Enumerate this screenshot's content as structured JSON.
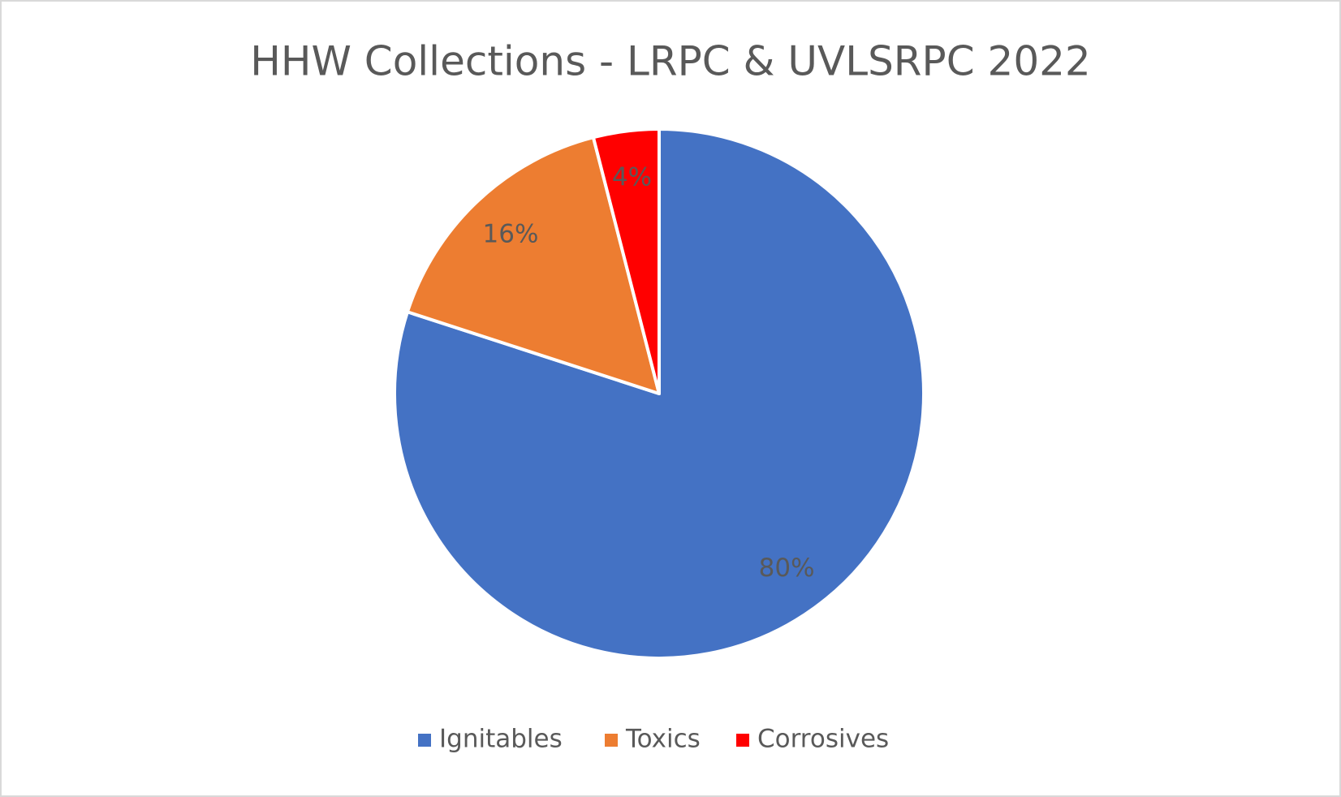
{
  "chart_data": {
    "type": "pie",
    "title": "HHW Collections - LRPC & UVLSRPC 2022",
    "categories": [
      "Ignitables",
      "Toxics",
      "Corrosives"
    ],
    "values": [
      80,
      16,
      4
    ],
    "value_labels": [
      "80%",
      "16%",
      "4%"
    ],
    "colors": [
      "#4472c4",
      "#ed7d31",
      "#ff0000"
    ],
    "legend": "bottom"
  }
}
